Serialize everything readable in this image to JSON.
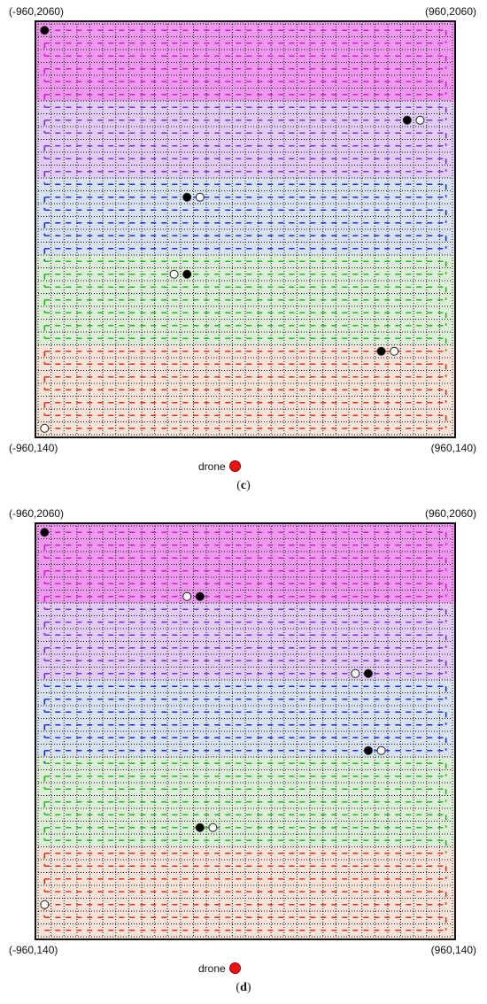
{
  "panels": [
    {
      "id": "c",
      "caption_open": "(",
      "caption_letter": "c",
      "caption_close": ")",
      "corner_top_left": "(-960,2060)",
      "corner_top_right": "(960,2060)",
      "corner_bottom_left": "(-960,140)",
      "corner_bottom_right": "(960,140)",
      "drone_label": "drone",
      "markers": [
        {
          "type": "filled",
          "row": 0,
          "col": 0
        },
        {
          "type": "filled",
          "row": 7,
          "col": 28
        },
        {
          "type": "open",
          "row": 7,
          "col": 29
        },
        {
          "type": "filled",
          "row": 13,
          "col": 11
        },
        {
          "type": "open",
          "row": 13,
          "col": 12
        },
        {
          "type": "open",
          "row": 19,
          "col": 10
        },
        {
          "type": "filled",
          "row": 19,
          "col": 11
        },
        {
          "type": "filled",
          "row": 25,
          "col": 26
        },
        {
          "type": "open",
          "row": 25,
          "col": 27
        },
        {
          "type": "open",
          "row": 31,
          "col": 0
        }
      ]
    },
    {
      "id": "d",
      "caption_open": "(",
      "caption_letter": "d",
      "caption_close": ")",
      "corner_top_left": "(-960,2060)",
      "corner_top_right": "(960,2060)",
      "corner_bottom_left": "(-960,140)",
      "corner_bottom_right": "(960,140)",
      "drone_label": "drone",
      "markers": [
        {
          "type": "filled",
          "row": 0,
          "col": 0
        },
        {
          "type": "open",
          "row": 5,
          "col": 11
        },
        {
          "type": "filled",
          "row": 5,
          "col": 12
        },
        {
          "type": "open",
          "row": 11,
          "col": 24
        },
        {
          "type": "filled",
          "row": 11,
          "col": 25
        },
        {
          "type": "filled",
          "row": 17,
          "col": 25
        },
        {
          "type": "open",
          "row": 17,
          "col": 26
        },
        {
          "type": "filled",
          "row": 23,
          "col": 12
        },
        {
          "type": "open",
          "row": 23,
          "col": 13
        },
        {
          "type": "open",
          "row": 29,
          "col": 0
        }
      ]
    }
  ],
  "grid": {
    "rows": 32,
    "cols": 32,
    "bands": [
      {
        "name": "magenta-band",
        "rows": [
          0,
          5
        ],
        "fill": "#ee99ee",
        "line": "#d01fd0"
      },
      {
        "name": "violet-band",
        "rows": [
          6,
          11
        ],
        "fill": "#e1ccf3",
        "line": "#7a2fd6"
      },
      {
        "name": "blue-band",
        "rows": [
          12,
          17
        ],
        "fill": "#d8e2ef",
        "line": "#1a2fe0"
      },
      {
        "name": "green-band",
        "rows": [
          18,
          24
        ],
        "fill": "#dcefd6",
        "line": "#22b822"
      },
      {
        "name": "red-band",
        "rows": [
          25,
          31
        ],
        "fill": "#f4e3d6",
        "line": "#e62c1e"
      }
    ],
    "dot_line_color": "#111111",
    "colors": {
      "drone": "#ee1111",
      "filled_marker": "#000000",
      "open_marker": "#ffffff"
    }
  }
}
